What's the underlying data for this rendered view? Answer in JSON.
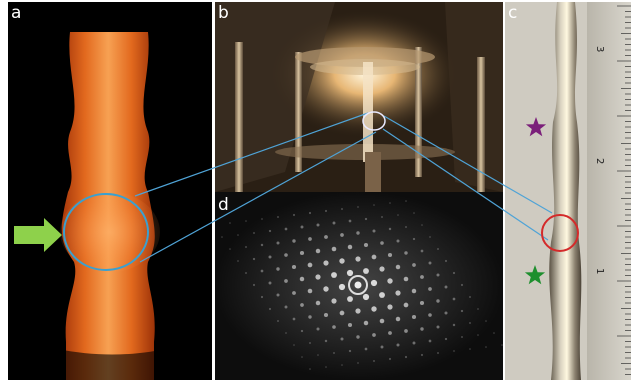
{
  "panels": {
    "a": {
      "label": "a"
    },
    "b": {
      "label": "b"
    },
    "c": {
      "label": "c"
    },
    "d": {
      "label": "d"
    }
  },
  "ruler": {
    "ticks": [
      "3",
      "2",
      "1"
    ]
  },
  "colors": {
    "connector_line": "#4fa3d6",
    "ellipse_blue": "#3aa0d0",
    "circle_red": "#d42a2a",
    "arrow_green": "#8ed14b",
    "star_purple": "#7b1f7a",
    "star_green": "#1e8f2e"
  },
  "icons": {
    "arrow": "arrow-right-icon",
    "star_top": "star-icon",
    "star_bottom": "star-icon"
  }
}
